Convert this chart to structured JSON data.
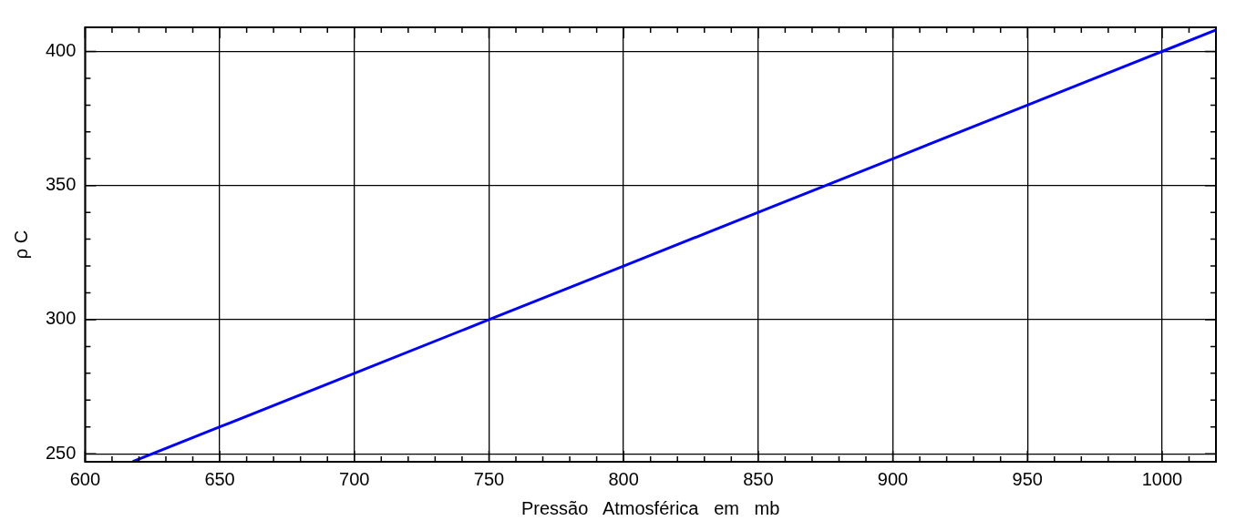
{
  "chart_data": {
    "type": "line",
    "xlabel": "Pressão   Atmosférica   em   mb",
    "ylabel": "ρ C",
    "x": [
      618,
      650,
      700,
      750,
      800,
      850,
      900,
      950,
      1000,
      1020
    ],
    "series": [
      {
        "color": "#0000ff",
        "values": [
          247.2,
          260,
          280,
          300,
          320,
          340,
          360,
          380,
          400,
          408
        ]
      }
    ],
    "xlim": [
      600,
      1020
    ],
    "ylim": [
      247,
      409
    ],
    "xticks": [
      600,
      {
        "value": 610,
        "label": null
      },
      {
        "value": 620,
        "label": null
      },
      {
        "value": 630,
        "label": null
      },
      {
        "value": 640,
        "label": null
      },
      650,
      {
        "value": 660,
        "label": null
      },
      {
        "value": 670,
        "label": null
      },
      {
        "value": 680,
        "label": null
      },
      {
        "value": 690,
        "label": null
      },
      700,
      {
        "value": 710,
        "label": null
      },
      {
        "value": 720,
        "label": null
      },
      {
        "value": 730,
        "label": null
      },
      {
        "value": 740,
        "label": null
      },
      750,
      {
        "value": 760,
        "label": null
      },
      {
        "value": 770,
        "label": null
      },
      {
        "value": 780,
        "label": null
      },
      {
        "value": 790,
        "label": null
      },
      800,
      {
        "value": 810,
        "label": null
      },
      {
        "value": 820,
        "label": null
      },
      {
        "value": 830,
        "label": null
      },
      {
        "value": 840,
        "label": null
      },
      850,
      {
        "value": 860,
        "label": null
      },
      {
        "value": 870,
        "label": null
      },
      {
        "value": 880,
        "label": null
      },
      {
        "value": 890,
        "label": null
      },
      900,
      {
        "value": 910,
        "label": null
      },
      {
        "value": 920,
        "label": null
      },
      {
        "value": 930,
        "label": null
      },
      {
        "value": 940,
        "label": null
      },
      950,
      {
        "value": 960,
        "label": null
      },
      {
        "value": 970,
        "label": null
      },
      {
        "value": 980,
        "label": null
      },
      {
        "value": 990,
        "label": null
      },
      1000,
      {
        "value": 1010,
        "label": null
      }
    ],
    "yticks": [
      250,
      {
        "value": 260,
        "label": null
      },
      {
        "value": 270,
        "label": null
      },
      {
        "value": 280,
        "label": null
      },
      {
        "value": 290,
        "label": null
      },
      300,
      {
        "value": 310,
        "label": null
      },
      {
        "value": 320,
        "label": null
      },
      {
        "value": 330,
        "label": null
      },
      {
        "value": 340,
        "label": null
      },
      350,
      {
        "value": 360,
        "label": null
      },
      {
        "value": 370,
        "label": null
      },
      {
        "value": 380,
        "label": null
      },
      {
        "value": 390,
        "label": null
      },
      400
    ],
    "grid": true,
    "legend": false,
    "marker": "none",
    "line_style": "solid"
  }
}
